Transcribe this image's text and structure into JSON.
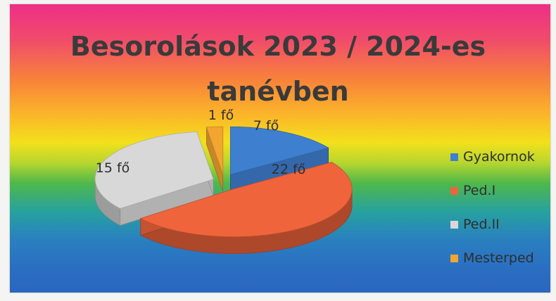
{
  "chart_data": {
    "type": "pie",
    "title": [
      "Besorolások 2023 / 2024-es",
      "tanévben"
    ],
    "categories": [
      "Gyakornok",
      "Ped.I",
      "Ped.II",
      "Mesterped"
    ],
    "values": [
      7,
      22,
      15,
      1
    ],
    "data_labels": [
      "7 fő",
      "22 fő",
      "15 fő",
      "1 fő"
    ],
    "colors": [
      "#3f7fd0",
      "#f0643c",
      "#d8d8d8",
      "#f2a531"
    ],
    "legend": "right",
    "style": "3d-exploded"
  }
}
